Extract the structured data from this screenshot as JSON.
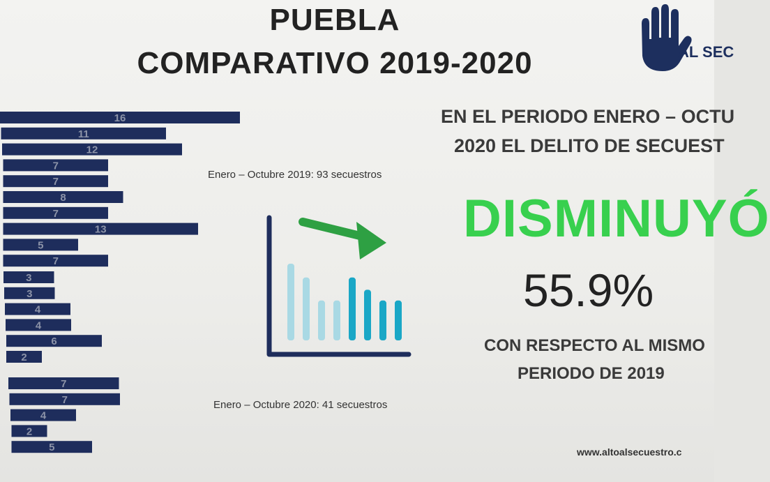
{
  "header": {
    "title_line1": "PUEBLA",
    "title_line2": "COMPARATIVO 2019-2020"
  },
  "logo": {
    "icon": "raised-hand-icon",
    "text": "AL SEC"
  },
  "chart_data": {
    "type": "bar",
    "orientation": "horizontal",
    "series": [
      {
        "caption": "Enero – Octubre 2019: 93 secuestros",
        "values": [
          16,
          11,
          12,
          7,
          7,
          8,
          7,
          13,
          5,
          7
        ]
      },
      {
        "caption": "",
        "values": [
          3,
          3,
          4,
          4,
          6,
          2
        ]
      },
      {
        "caption": "Enero – Octubre 2020: 41 secuestros",
        "values": [
          7,
          7,
          4,
          2,
          5
        ]
      }
    ],
    "bar_color": "#1e2d5c",
    "label_color": "#8c93a8"
  },
  "illustration": {
    "icon": "declining-bar-chart-icon",
    "arrow_color": "#2ea043",
    "bar_colors": [
      "#a9d9e4",
      "#a9d9e4",
      "#a9d9e4",
      "#a9d9e4",
      "#1aa7c6",
      "#1aa7c6",
      "#1aa7c6",
      "#1aa7c6"
    ],
    "bar_levels": [
      1.0,
      0.82,
      0.52,
      0.52,
      0.82,
      0.66,
      0.52,
      0.52
    ]
  },
  "summary": {
    "line1": "EN EL PERIODO ENERO – OCTU",
    "line2": "2020 EL DELITO DE SECUEST",
    "verdict": "DISMINUYÓ",
    "percent": "55.9%",
    "line3": "CON RESPECTO AL MISMO",
    "line4": "PERIODO DE  2019"
  },
  "footer": {
    "url": "www.altoalsecuestro.c"
  },
  "colors": {
    "title": "#222222",
    "verdict": "#38d04e",
    "text": "#3a3a3a"
  }
}
